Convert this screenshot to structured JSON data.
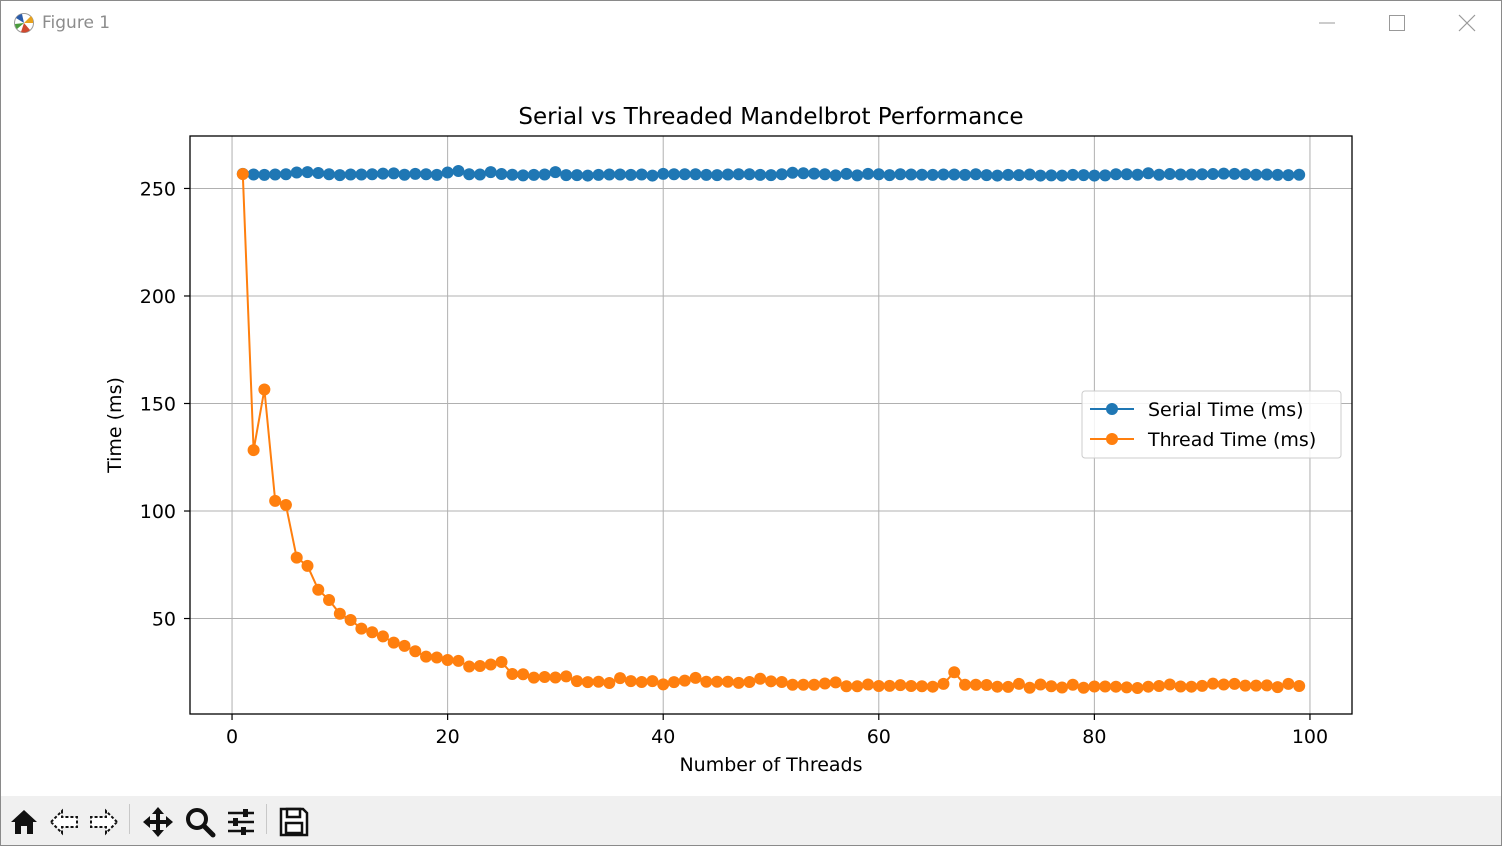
{
  "window": {
    "title": "Figure 1",
    "icons": {
      "app": "matplotlib-logo-icon",
      "minimize": "minimize-icon",
      "maximize": "maximize-icon",
      "close": "close-icon"
    }
  },
  "toolbar": {
    "buttons": [
      {
        "name": "home-button",
        "icon": "home-icon"
      },
      {
        "name": "back-button",
        "icon": "back-arrow-icon"
      },
      {
        "name": "forward-button",
        "icon": "forward-arrow-icon"
      },
      {
        "name": "pan-button",
        "icon": "move-icon"
      },
      {
        "name": "zoom-button",
        "icon": "magnifier-icon"
      },
      {
        "name": "configure-subplots-button",
        "icon": "sliders-icon"
      },
      {
        "name": "save-button",
        "icon": "floppy-disk-icon"
      }
    ]
  },
  "colors": {
    "serial": "#1f77b4",
    "thread": "#ff7f0e",
    "grid": "#b0b0b0",
    "axes": "#000000"
  },
  "chart_data": {
    "type": "line",
    "title": "Serial vs Threaded Mandelbrot Performance",
    "xlabel": "Number of Threads",
    "ylabel": "Time (ms)",
    "xlim": [
      -3.9,
      103.9
    ],
    "ylim": [
      5.6,
      274.4
    ],
    "xticks": [
      0,
      20,
      40,
      60,
      80,
      100
    ],
    "yticks": [
      50,
      100,
      150,
      200,
      250
    ],
    "grid": true,
    "legend_position": "center-right",
    "markers": "circle",
    "x": [
      1,
      2,
      3,
      4,
      5,
      6,
      7,
      8,
      9,
      10,
      11,
      12,
      13,
      14,
      15,
      16,
      17,
      18,
      19,
      20,
      21,
      22,
      23,
      24,
      25,
      26,
      27,
      28,
      29,
      30,
      31,
      32,
      33,
      34,
      35,
      36,
      37,
      38,
      39,
      40,
      41,
      42,
      43,
      44,
      45,
      46,
      47,
      48,
      49,
      50,
      51,
      52,
      53,
      54,
      55,
      56,
      57,
      58,
      59,
      60,
      61,
      62,
      63,
      64,
      65,
      66,
      67,
      68,
      69,
      70,
      71,
      72,
      73,
      74,
      75,
      76,
      77,
      78,
      79,
      80,
      81,
      82,
      83,
      84,
      85,
      86,
      87,
      88,
      89,
      90,
      91,
      92,
      93,
      94,
      95,
      96,
      97,
      98,
      99
    ],
    "series": [
      {
        "name": "Serial Time (ms)",
        "color": "#1f77b4",
        "values": [
          256.8,
          256.5,
          256.3,
          256.5,
          256.6,
          257.4,
          257.6,
          257.2,
          256.6,
          256.2,
          256.5,
          256.5,
          256.6,
          256.9,
          257.0,
          256.4,
          256.8,
          256.6,
          256.3,
          257.4,
          258.1,
          256.6,
          256.5,
          257.6,
          256.7,
          256.4,
          256.1,
          256.3,
          256.5,
          257.6,
          256.2,
          256.2,
          256.0,
          256.3,
          256.5,
          256.5,
          256.3,
          256.5,
          256.0,
          256.8,
          256.6,
          256.6,
          256.6,
          256.3,
          256.2,
          256.5,
          256.6,
          256.6,
          256.3,
          256.2,
          256.6,
          257.3,
          257.1,
          256.9,
          256.6,
          256.1,
          256.8,
          256.1,
          256.8,
          256.6,
          256.2,
          256.6,
          256.5,
          256.4,
          256.3,
          256.5,
          256.5,
          256.3,
          256.6,
          256.2,
          256.0,
          256.3,
          256.2,
          256.5,
          256.0,
          256.1,
          256.0,
          256.3,
          256.2,
          256.0,
          256.1,
          256.6,
          256.6,
          256.4,
          257.1,
          256.4,
          256.7,
          256.5,
          256.5,
          256.6,
          256.7,
          256.9,
          256.8,
          256.6,
          256.4,
          256.5,
          256.3,
          256.2,
          256.4
        ]
      },
      {
        "name": "Thread Time (ms)",
        "color": "#ff7f0e",
        "values": [
          256.7,
          128.3,
          156.5,
          104.7,
          102.8,
          78.3,
          74.5,
          63.4,
          58.6,
          52.2,
          49.3,
          45.3,
          43.6,
          41.7,
          38.8,
          37.3,
          34.8,
          32.3,
          31.9,
          30.7,
          30.3,
          27.7,
          27.9,
          28.6,
          29.8,
          24.2,
          24.1,
          22.5,
          22.8,
          22.6,
          23.1,
          20.9,
          20.4,
          20.6,
          20.0,
          22.3,
          20.9,
          20.5,
          20.9,
          19.4,
          20.4,
          21.1,
          22.4,
          20.6,
          20.6,
          20.6,
          20.1,
          20.5,
          22.0,
          20.8,
          20.5,
          19.2,
          19.2,
          19.2,
          19.8,
          20.3,
          18.5,
          18.5,
          19.3,
          18.6,
          18.7,
          19.0,
          18.6,
          18.5,
          18.3,
          19.6,
          25.0,
          19.2,
          19.2,
          19.1,
          18.3,
          18.2,
          19.6,
          17.8,
          19.3,
          18.5,
          17.9,
          19.2,
          17.8,
          18.4,
          18.4,
          18.3,
          18.0,
          17.7,
          18.3,
          18.6,
          19.3,
          18.4,
          18.3,
          18.7,
          19.7,
          19.3,
          19.6,
          18.8,
          18.8,
          18.9,
          18.1,
          19.6,
          18.6
        ]
      }
    ]
  }
}
